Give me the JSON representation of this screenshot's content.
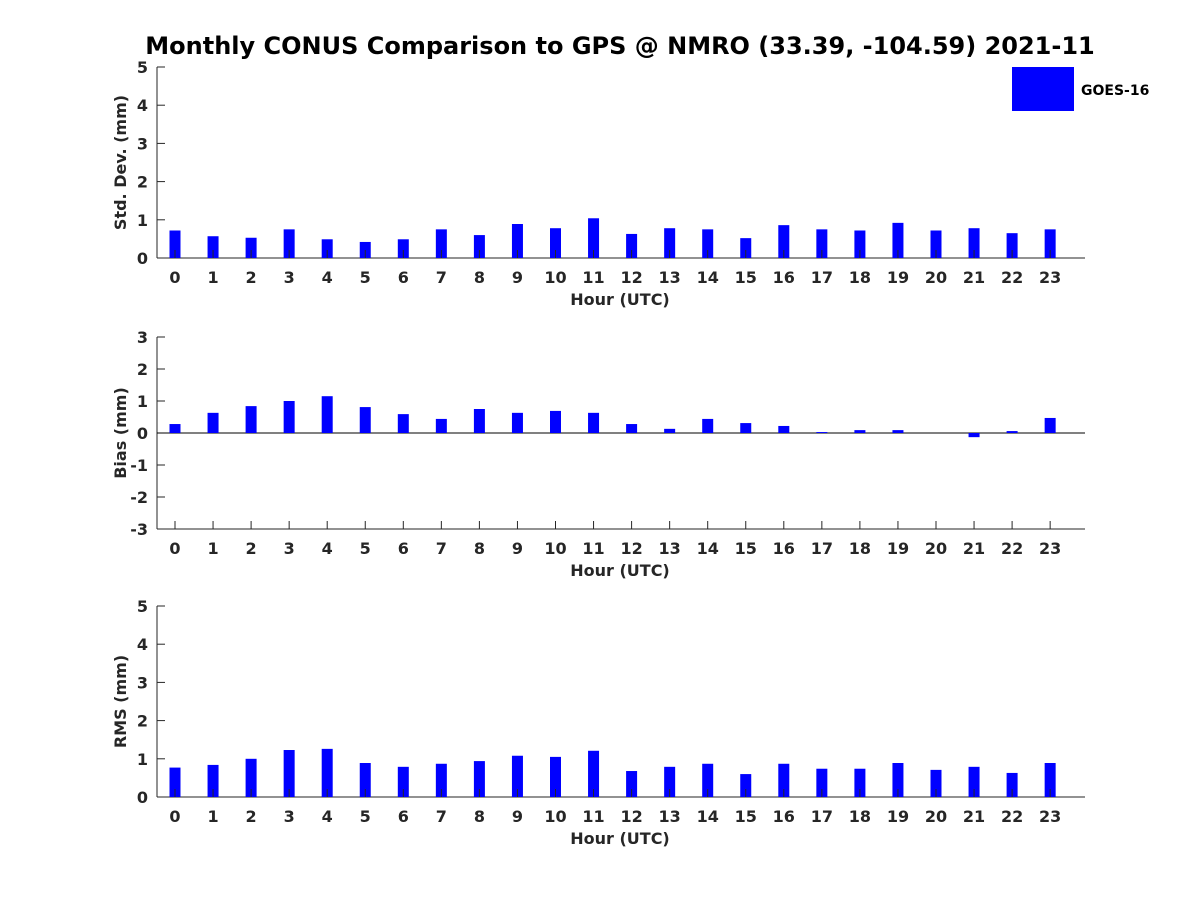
{
  "title": "Monthly CONUS Comparison to GPS @ NMRO (33.39, -104.59) 2021-11",
  "legend": {
    "label": "GOES-16",
    "placement": "top-right"
  },
  "colors": {
    "bar": "#0000ff",
    "axis": "#262626",
    "background": "#ffffff"
  },
  "chart_data": [
    {
      "type": "bar",
      "name": "std-dev",
      "categories": [
        "0",
        "1",
        "2",
        "3",
        "4",
        "5",
        "6",
        "7",
        "8",
        "9",
        "10",
        "11",
        "12",
        "13",
        "14",
        "15",
        "16",
        "17",
        "18",
        "19",
        "20",
        "21",
        "22",
        "23"
      ],
      "series": [
        {
          "name": "GOES-16",
          "values": [
            0.72,
            0.57,
            0.53,
            0.75,
            0.49,
            0.42,
            0.49,
            0.75,
            0.6,
            0.89,
            0.78,
            1.04,
            0.63,
            0.78,
            0.75,
            0.52,
            0.86,
            0.75,
            0.72,
            0.92,
            0.72,
            0.78,
            0.65,
            0.75
          ]
        }
      ],
      "xlabel": "Hour (UTC)",
      "ylabel": "Std. Dev. (mm)",
      "ylim": [
        0,
        5
      ],
      "yticks": [
        "0",
        "1",
        "2",
        "3",
        "4",
        "5"
      ],
      "grid": false
    },
    {
      "type": "bar",
      "name": "bias",
      "categories": [
        "0",
        "1",
        "2",
        "3",
        "4",
        "5",
        "6",
        "7",
        "8",
        "9",
        "10",
        "11",
        "12",
        "13",
        "14",
        "15",
        "16",
        "17",
        "18",
        "19",
        "20",
        "21",
        "22",
        "23"
      ],
      "series": [
        {
          "name": "GOES-16",
          "values": [
            0.28,
            0.63,
            0.84,
            1.0,
            1.15,
            0.81,
            0.59,
            0.44,
            0.75,
            0.63,
            0.69,
            0.63,
            0.28,
            0.13,
            0.44,
            0.31,
            0.22,
            0.03,
            0.09,
            0.09,
            0.0,
            -0.13,
            0.06,
            0.47
          ]
        }
      ],
      "xlabel": "Hour (UTC)",
      "ylabel": "Bias (mm)",
      "ylim": [
        -3,
        3
      ],
      "yticks": [
        "-3",
        "-2",
        "-1",
        "0",
        "1",
        "2",
        "3"
      ],
      "zero_line": true,
      "grid": false
    },
    {
      "type": "bar",
      "name": "rms",
      "categories": [
        "0",
        "1",
        "2",
        "3",
        "4",
        "5",
        "6",
        "7",
        "8",
        "9",
        "10",
        "11",
        "12",
        "13",
        "14",
        "15",
        "16",
        "17",
        "18",
        "19",
        "20",
        "21",
        "22",
        "23"
      ],
      "series": [
        {
          "name": "GOES-16",
          "values": [
            0.77,
            0.84,
            1.0,
            1.23,
            1.26,
            0.89,
            0.79,
            0.87,
            0.94,
            1.08,
            1.05,
            1.21,
            0.68,
            0.79,
            0.87,
            0.6,
            0.87,
            0.74,
            0.74,
            0.89,
            0.71,
            0.79,
            0.63,
            0.89
          ]
        }
      ],
      "xlabel": "Hour (UTC)",
      "ylabel": "RMS (mm)",
      "ylim": [
        0,
        5
      ],
      "yticks": [
        "0",
        "1",
        "2",
        "3",
        "4",
        "5"
      ],
      "grid": false
    }
  ]
}
